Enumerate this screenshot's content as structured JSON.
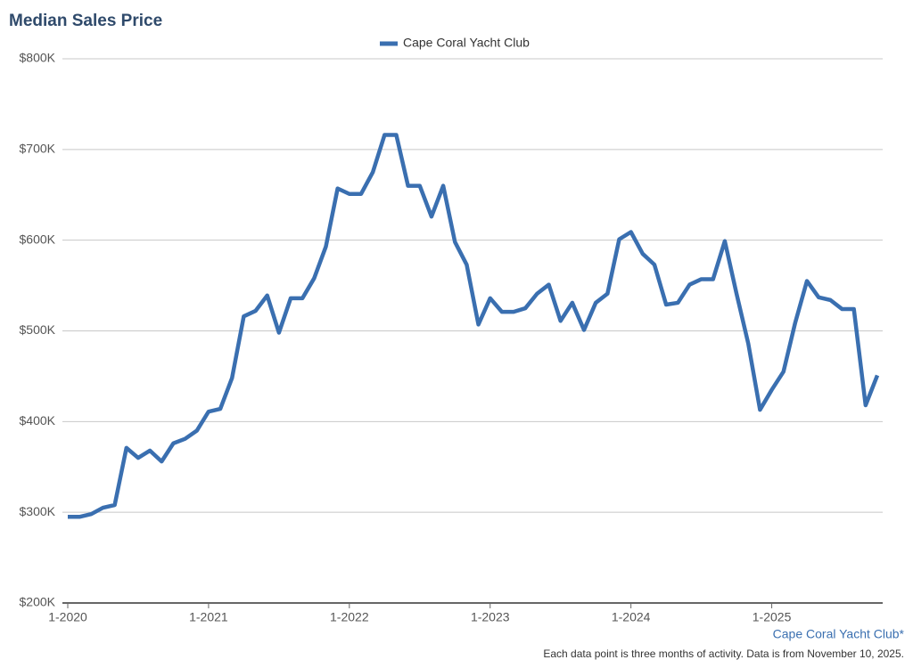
{
  "chart_data": {
    "type": "line",
    "title": "Median Sales Price",
    "categories": [
      "1-2020",
      null,
      null,
      null,
      null,
      null,
      null,
      null,
      null,
      null,
      null,
      null,
      "1-2021",
      null,
      null,
      null,
      null,
      null,
      null,
      null,
      null,
      null,
      null,
      null,
      "1-2022",
      null,
      null,
      null,
      null,
      null,
      null,
      null,
      null,
      null,
      null,
      null,
      "1-2023",
      null,
      null,
      null,
      null,
      null,
      null,
      null,
      null,
      null,
      null,
      null,
      "1-2024",
      null,
      null,
      null,
      null,
      null,
      null,
      null,
      null,
      null,
      null,
      null,
      "1-2025",
      null,
      null,
      null,
      null,
      null,
      null,
      null,
      null,
      null
    ],
    "series": [
      {
        "name": "Cape Coral Yacht Club",
        "color": "#3a6fb0",
        "values": [
          295000,
          295000,
          298000,
          305000,
          308000,
          371000,
          360000,
          368000,
          356000,
          376000,
          381000,
          390000,
          411000,
          414000,
          448000,
          516000,
          522000,
          539000,
          498000,
          536000,
          536000,
          558000,
          593000,
          657000,
          651000,
          651000,
          675000,
          716000,
          716000,
          660000,
          660000,
          626000,
          660000,
          598000,
          573000,
          507000,
          536000,
          521000,
          521000,
          525000,
          541000,
          551000,
          511000,
          531000,
          501000,
          531000,
          541000,
          601000,
          609000,
          585000,
          573000,
          529000,
          531000,
          551000,
          557000,
          557000,
          599000,
          541000,
          486000,
          413000,
          435000,
          455000,
          509000,
          555000,
          537000,
          534000,
          524000,
          524000,
          418000,
          451000
        ]
      }
    ],
    "ylim": [
      200000,
      800000
    ],
    "yticks": [
      {
        "value": 200000,
        "label": "$200K"
      },
      {
        "value": 300000,
        "label": "$300K"
      },
      {
        "value": 400000,
        "label": "$400K"
      },
      {
        "value": 500000,
        "label": "$500K"
      },
      {
        "value": 600000,
        "label": "$600K"
      },
      {
        "value": 700000,
        "label": "$700K"
      },
      {
        "value": 800000,
        "label": "$800K"
      }
    ],
    "grid": true,
    "source_label": "Cape Coral Yacht Club*",
    "footnote": "Each data point is three months of activity. Data is from November 10, 2025."
  }
}
